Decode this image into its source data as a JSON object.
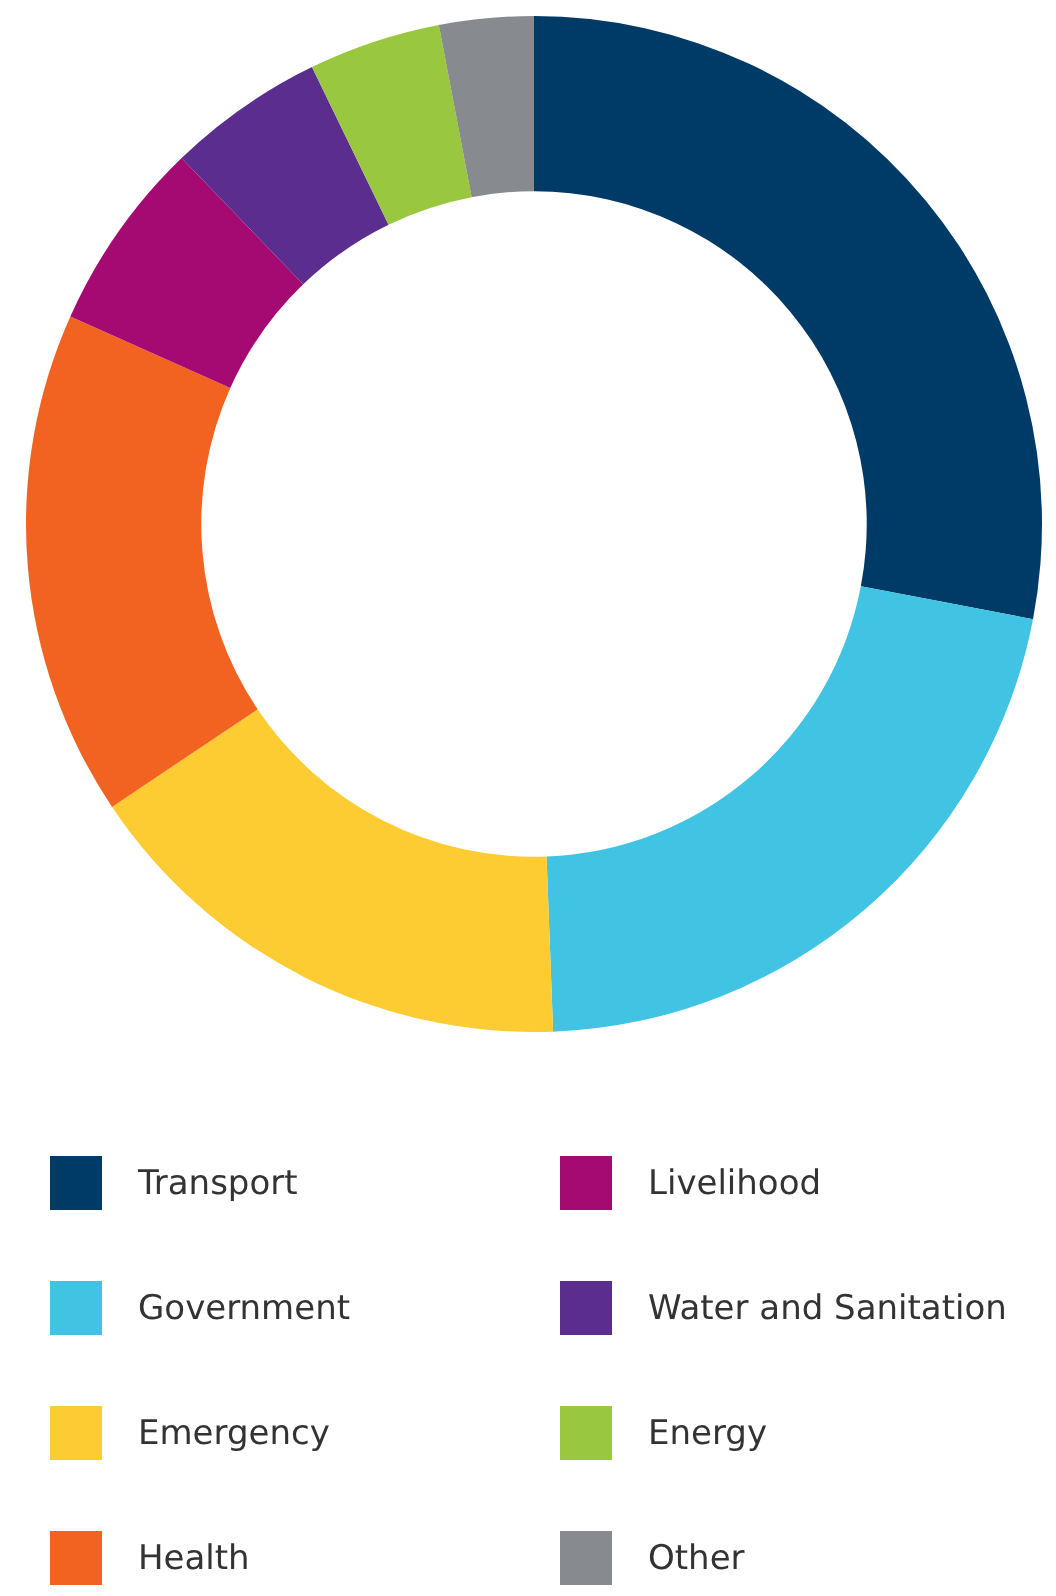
{
  "chart_data": {
    "type": "donut",
    "categories": [
      "Transport",
      "Government",
      "Emergency",
      "Health",
      "Livelihood",
      "Water and Sanitation",
      "Energy",
      "Other"
    ],
    "values": [
      28.0,
      21.4,
      16.2,
      16.1,
      6.1,
      5.0,
      4.2,
      3.0
    ],
    "colors": [
      "#003a66",
      "#41c4e3",
      "#fdcc33",
      "#f26322",
      "#a50a73",
      "#5b2d8e",
      "#99c740",
      "#878a8f"
    ],
    "legend": "bottom"
  }
}
